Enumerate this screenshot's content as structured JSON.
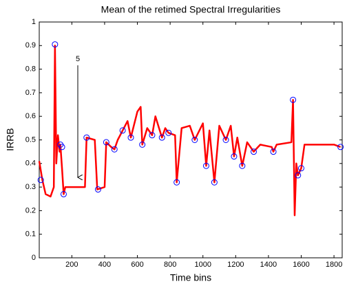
{
  "chart_data": {
    "type": "line",
    "title": "Mean of the retimed Spectral Irregularities",
    "x_label": "Time bins",
    "y_label": "IRRB",
    "annotation": "5",
    "xlim": [
      1,
      1850
    ],
    "ylim": [
      0,
      1
    ],
    "xticks": [
      200,
      400,
      600,
      800,
      1000,
      1200,
      1400,
      1600,
      1800
    ],
    "yticks": [
      0,
      0.1,
      0.2,
      0.3,
      0.4,
      0.5,
      0.6,
      0.7,
      0.8,
      0.9,
      1
    ],
    "series": [
      {
        "color": "#ff0000",
        "style": "line",
        "x": [
          1,
          20,
          40,
          70,
          90,
          97,
          105,
          115,
          125,
          130,
          140,
          150,
          160,
          280,
          290,
          340,
          355,
          400,
          410,
          440,
          460,
          480,
          510,
          540,
          560,
          600,
          620,
          630,
          660,
          690,
          710,
          750,
          770,
          790,
          830,
          840,
          870,
          920,
          950,
          1000,
          1020,
          1040,
          1070,
          1100,
          1140,
          1170,
          1190,
          1210,
          1240,
          1270,
          1310,
          1350,
          1420,
          1430,
          1450,
          1540,
          1550,
          1560,
          1570,
          1580,
          1600,
          1620,
          1800,
          1840
        ],
        "values": [
          0.41,
          0.33,
          0.27,
          0.26,
          0.3,
          0.9,
          0.4,
          0.52,
          0.45,
          0.48,
          0.38,
          0.27,
          0.3,
          0.3,
          0.51,
          0.5,
          0.29,
          0.3,
          0.49,
          0.47,
          0.46,
          0.5,
          0.54,
          0.58,
          0.51,
          0.62,
          0.64,
          0.48,
          0.55,
          0.52,
          0.6,
          0.51,
          0.55,
          0.53,
          0.52,
          0.32,
          0.55,
          0.56,
          0.5,
          0.57,
          0.39,
          0.54,
          0.32,
          0.56,
          0.5,
          0.56,
          0.43,
          0.51,
          0.39,
          0.49,
          0.45,
          0.48,
          0.47,
          0.45,
          0.48,
          0.49,
          0.67,
          0.18,
          0.4,
          0.35,
          0.38,
          0.48,
          0.48,
          0.47
        ]
      },
      {
        "color": "#0000ff",
        "style": "circles",
        "x": [
          10,
          97,
          130,
          140,
          150,
          290,
          360,
          410,
          460,
          510,
          560,
          630,
          690,
          750,
          790,
          840,
          950,
          1020,
          1070,
          1140,
          1190,
          1240,
          1310,
          1430,
          1550,
          1580,
          1600,
          1840
        ],
        "values": [
          0.33,
          0.905,
          0.48,
          0.47,
          0.27,
          0.51,
          0.29,
          0.49,
          0.46,
          0.54,
          0.51,
          0.48,
          0.52,
          0.51,
          0.53,
          0.32,
          0.5,
          0.39,
          0.32,
          0.5,
          0.43,
          0.39,
          0.45,
          0.45,
          0.67,
          0.35,
          0.38,
          0.47
        ]
      }
    ]
  }
}
